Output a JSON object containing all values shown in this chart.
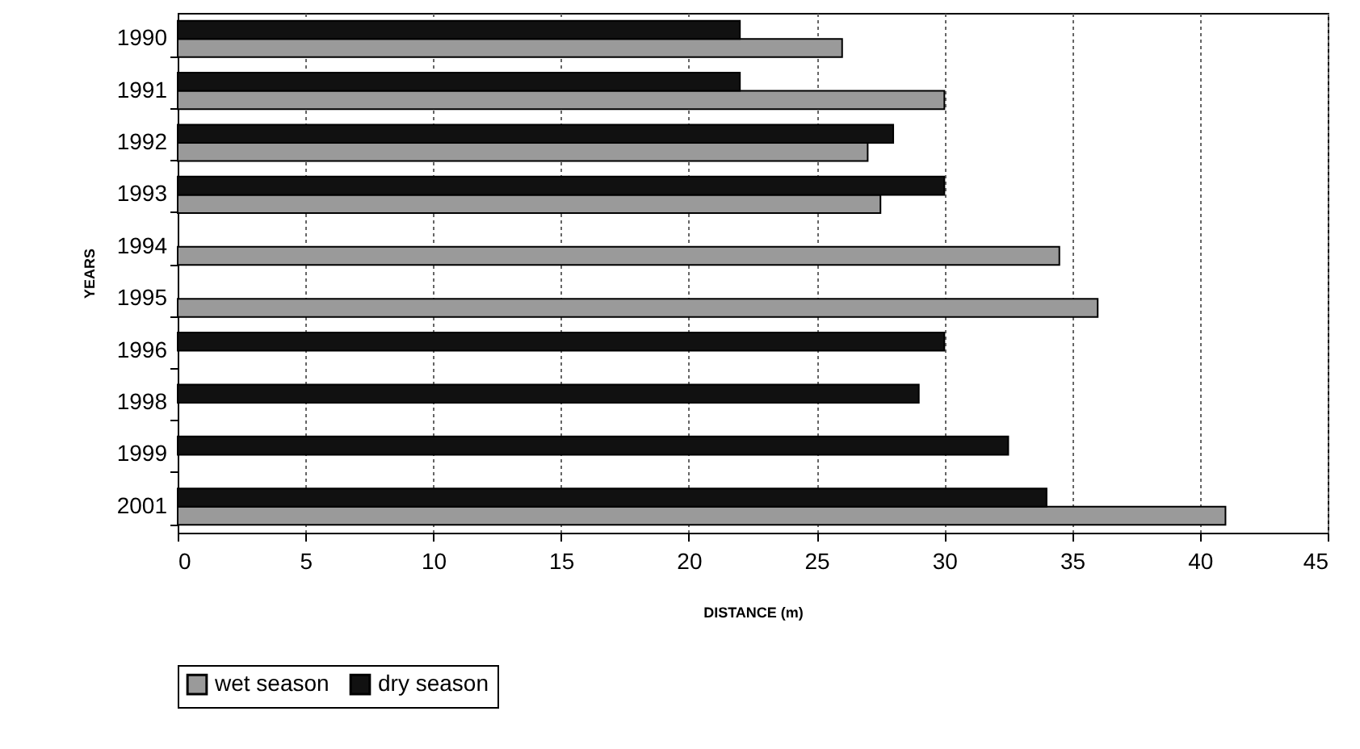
{
  "chart_data": {
    "type": "bar",
    "orientation": "horizontal",
    "xlabel": "DISTANCE (m)",
    "ylabel": "YEARS",
    "categories": [
      "1990",
      "1991",
      "1992",
      "1993",
      "1994",
      "1995",
      "1996",
      "1998",
      "1999",
      "2001"
    ],
    "series": [
      {
        "name": "wet season",
        "color": "#9a9a9a",
        "values": [
          26,
          30,
          27,
          27.5,
          34.5,
          36,
          null,
          null,
          null,
          41
        ]
      },
      {
        "name": "dry season",
        "color": "#111111",
        "values": [
          22,
          22,
          28,
          30,
          null,
          null,
          30,
          29,
          32.5,
          34
        ]
      }
    ],
    "xlim": [
      0,
      45
    ],
    "xticks": [
      0,
      5,
      10,
      15,
      20,
      25,
      30,
      35,
      40,
      45
    ],
    "grid": "x",
    "legend": "bottom"
  }
}
